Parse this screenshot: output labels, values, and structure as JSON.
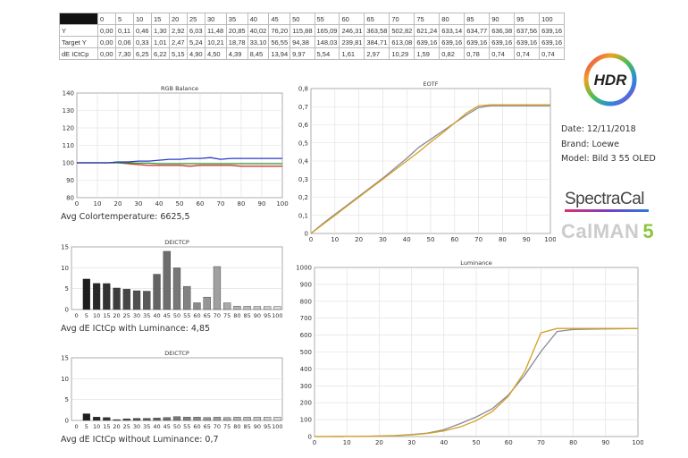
{
  "table": {
    "columns": [
      "0",
      "5",
      "10",
      "15",
      "20",
      "25",
      "30",
      "35",
      "40",
      "45",
      "50",
      "55",
      "60",
      "65",
      "70",
      "75",
      "80",
      "85",
      "90",
      "95",
      "100"
    ],
    "rows": [
      {
        "label": "Y",
        "values": [
          "0,00",
          "0,11",
          "0,46",
          "1,30",
          "2,92",
          "6,03",
          "11,48",
          "20,85",
          "40,02",
          "76,20",
          "115,88",
          "165,09",
          "246,31",
          "363,58",
          "502,82",
          "621,24",
          "633,14",
          "634,77",
          "636,38",
          "637,56",
          "639,16"
        ]
      },
      {
        "label": "Target Y",
        "values": [
          "0,00",
          "0,06",
          "0,33",
          "1,01",
          "2,47",
          "5,24",
          "10,21",
          "18,78",
          "33,10",
          "56,55",
          "94,38",
          "148,03",
          "239,81",
          "384,71",
          "613,08",
          "639,16",
          "639,16",
          "639,16",
          "639,16",
          "639,16",
          "639,16"
        ]
      },
      {
        "label": "dE ICtCp",
        "values": [
          "0,00",
          "7,30",
          "6,25",
          "6,22",
          "5,15",
          "4,90",
          "4,50",
          "4,39",
          "8,45",
          "13,94",
          "9,97",
          "5,54",
          "1,61",
          "2,97",
          "10,29",
          "1,59",
          "0,82",
          "0,78",
          "0,74",
          "0,74",
          "0,74"
        ]
      }
    ]
  },
  "captions": {
    "rgb": "Avg Colortemperature: 6625,5",
    "de_lum": "Avg dE ICtCp with Luminance: 4,85",
    "de_nolum": "Avg dE ICtCp without Luminance: 0,7"
  },
  "info": {
    "date": "Date: 12/11/2018",
    "brand": "Brand: Loewe",
    "model": "Model: Bild 3 55 OLED"
  },
  "logos": {
    "hdr": "HDR",
    "spectracal": "SpectraCal",
    "calman": "CalMAN",
    "calman_version": "5"
  },
  "colors": {
    "red": "#cc2222",
    "green": "#2a9a2a",
    "blue": "#2a3ac8",
    "measured": "#8a8a9a",
    "target": "#d4a020"
  },
  "chart_data": [
    {
      "type": "line",
      "title": "RGB Balance",
      "x": [
        0,
        5,
        10,
        15,
        20,
        25,
        30,
        35,
        40,
        45,
        50,
        55,
        60,
        65,
        70,
        75,
        80,
        85,
        90,
        95,
        100
      ],
      "xlim": [
        0,
        100
      ],
      "ylim": [
        80,
        140
      ],
      "yticks": [
        80,
        90,
        100,
        110,
        120,
        130,
        140
      ],
      "xticks": [
        0,
        10,
        20,
        30,
        40,
        50,
        60,
        70,
        80,
        90,
        100
      ],
      "series": [
        {
          "color": "red",
          "values": [
            100,
            100,
            100,
            100,
            100,
            99.5,
            99,
            98.5,
            98.5,
            98.5,
            98.5,
            98,
            98.5,
            98.5,
            98.5,
            98.5,
            98,
            98,
            98,
            98,
            98
          ]
        },
        {
          "color": "green",
          "values": [
            100,
            100,
            100,
            100,
            100,
            100,
            99.8,
            99.8,
            99.5,
            99.5,
            99.5,
            99.5,
            99.5,
            99.5,
            99.5,
            99.5,
            99.5,
            99.5,
            99.5,
            99.5,
            99.5
          ]
        },
        {
          "color": "blue",
          "values": [
            100,
            100,
            100,
            100,
            100.5,
            100.5,
            101,
            101,
            101.5,
            102,
            102,
            102.5,
            102.5,
            103,
            102,
            102.5,
            102.5,
            102.5,
            102.5,
            102.5,
            102.5
          ]
        }
      ]
    },
    {
      "type": "bar",
      "title": "DEICTCP",
      "categories": [
        "0",
        "5",
        "10",
        "15",
        "20",
        "25",
        "30",
        "35",
        "40",
        "45",
        "50",
        "55",
        "60",
        "65",
        "70",
        "75",
        "80",
        "85",
        "90",
        "95",
        "100"
      ],
      "values": [
        0,
        7.3,
        6.25,
        6.22,
        5.15,
        4.9,
        4.5,
        4.39,
        8.45,
        13.94,
        9.97,
        5.54,
        1.61,
        2.97,
        10.29,
        1.59,
        0.82,
        0.78,
        0.74,
        0.74,
        0.74
      ],
      "ylim": [
        0,
        15
      ],
      "yticks": [
        0,
        5,
        10,
        15
      ]
    },
    {
      "type": "bar",
      "title": "DEICTCP",
      "categories": [
        "0",
        "5",
        "10",
        "15",
        "20",
        "25",
        "30",
        "35",
        "40",
        "45",
        "50",
        "55",
        "60",
        "65",
        "70",
        "75",
        "80",
        "85",
        "90",
        "95",
        "100"
      ],
      "values": [
        0,
        1.6,
        0.8,
        0.7,
        0.2,
        0.4,
        0.5,
        0.5,
        0.6,
        0.7,
        0.9,
        0.8,
        0.8,
        0.7,
        0.8,
        0.7,
        0.8,
        0.8,
        0.8,
        0.8,
        0.8
      ],
      "ylim": [
        0,
        15
      ],
      "yticks": [
        0,
        5,
        10,
        15
      ]
    },
    {
      "type": "line",
      "title": "EOTF",
      "x": [
        0,
        5,
        10,
        15,
        20,
        25,
        30,
        35,
        40,
        45,
        50,
        55,
        60,
        65,
        70,
        75,
        80,
        85,
        90,
        95,
        100
      ],
      "xlim": [
        0,
        100
      ],
      "ylim": [
        0,
        0.8
      ],
      "yticks": [
        0,
        0.1,
        0.2,
        0.3,
        0.4,
        0.5,
        0.6,
        0.7,
        0.8
      ],
      "ytick_labels": [
        "0",
        "0,1",
        "0,2",
        "0,3",
        "0,4",
        "0,5",
        "0,6",
        "0,7",
        "0,8"
      ],
      "xticks": [
        0,
        10,
        20,
        30,
        40,
        50,
        60,
        70,
        80,
        90,
        100
      ],
      "series": [
        {
          "color": "measured",
          "values": [
            0,
            0.055,
            0.105,
            0.155,
            0.205,
            0.255,
            0.305,
            0.36,
            0.415,
            0.475,
            0.52,
            0.565,
            0.61,
            0.655,
            0.695,
            0.705,
            0.705,
            0.705,
            0.705,
            0.705,
            0.705
          ]
        },
        {
          "color": "target",
          "values": [
            0,
            0.05,
            0.1,
            0.15,
            0.2,
            0.25,
            0.3,
            0.35,
            0.4,
            0.45,
            0.505,
            0.555,
            0.61,
            0.665,
            0.705,
            0.71,
            0.71,
            0.71,
            0.71,
            0.71,
            0.71
          ]
        }
      ]
    },
    {
      "type": "line",
      "title": "Luminance",
      "x": [
        0,
        5,
        10,
        15,
        20,
        25,
        30,
        35,
        40,
        45,
        50,
        55,
        60,
        65,
        70,
        75,
        80,
        85,
        90,
        95,
        100
      ],
      "xlim": [
        0,
        100
      ],
      "ylim": [
        0,
        1000
      ],
      "yticks": [
        0,
        100,
        200,
        300,
        400,
        500,
        600,
        700,
        800,
        900,
        1000
      ],
      "xticks": [
        0,
        10,
        20,
        30,
        40,
        50,
        60,
        70,
        80,
        90,
        100
      ],
      "series": [
        {
          "color": "measured",
          "values": [
            0,
            0.11,
            0.46,
            1.3,
            2.92,
            6.03,
            11.48,
            20.85,
            40.02,
            76.2,
            115.88,
            165.09,
            246.31,
            363.58,
            502.82,
            621.24,
            633.14,
            634.77,
            636.38,
            637.56,
            639.16
          ]
        },
        {
          "color": "target",
          "values": [
            0,
            0.06,
            0.33,
            1.01,
            2.47,
            5.24,
            10.21,
            18.78,
            33.1,
            56.55,
            94.38,
            148.03,
            239.81,
            384.71,
            613.08,
            639.16,
            639.16,
            639.16,
            639.16,
            639.16,
            639.16
          ]
        }
      ]
    }
  ]
}
